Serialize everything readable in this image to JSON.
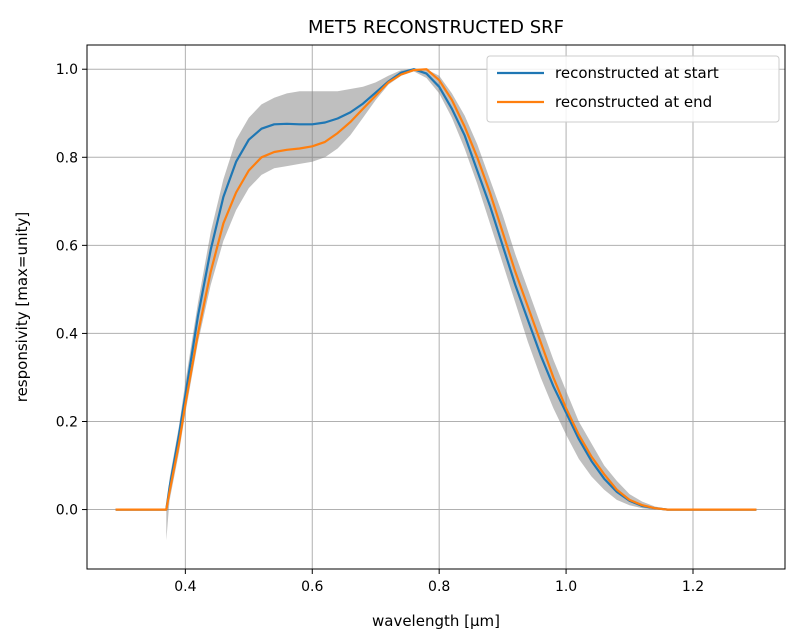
{
  "chart_data": {
    "type": "line",
    "title": "MET5 RECONSTRUCTED SRF",
    "xlabel": "wavelength [μm]",
    "ylabel": "responsivity [max=unity]",
    "xlim": [
      0.245,
      1.345
    ],
    "ylim": [
      -0.135,
      1.055
    ],
    "xticks": [
      0.4,
      0.6,
      0.8,
      1.0,
      1.2
    ],
    "xtick_labels": [
      "0.4",
      "0.6",
      "0.8",
      "1.0",
      "1.2"
    ],
    "yticks": [
      0.0,
      0.2,
      0.4,
      0.6,
      0.8,
      1.0
    ],
    "ytick_labels": [
      "0.0",
      "0.2",
      "0.4",
      "0.6",
      "0.8",
      "1.0"
    ],
    "grid": true,
    "legend_position": "top-right",
    "series": [
      {
        "name": "reconstructed at start",
        "color": "#1f77b4",
        "x": [
          0.29,
          0.34,
          0.37,
          0.375,
          0.39,
          0.4,
          0.42,
          0.44,
          0.46,
          0.48,
          0.5,
          0.52,
          0.54,
          0.56,
          0.58,
          0.6,
          0.62,
          0.64,
          0.66,
          0.68,
          0.7,
          0.72,
          0.74,
          0.76,
          0.78,
          0.8,
          0.82,
          0.84,
          0.86,
          0.88,
          0.9,
          0.92,
          0.94,
          0.96,
          0.98,
          1.0,
          1.02,
          1.04,
          1.06,
          1.08,
          1.1,
          1.12,
          1.14,
          1.16,
          1.18,
          1.2,
          1.25,
          1.3
        ],
        "y": [
          0.0,
          0.0,
          0.0,
          0.05,
          0.17,
          0.26,
          0.44,
          0.59,
          0.71,
          0.79,
          0.84,
          0.865,
          0.875,
          0.876,
          0.875,
          0.875,
          0.879,
          0.888,
          0.902,
          0.922,
          0.947,
          0.972,
          0.992,
          1.0,
          0.99,
          0.96,
          0.91,
          0.85,
          0.77,
          0.69,
          0.6,
          0.51,
          0.43,
          0.35,
          0.28,
          0.22,
          0.16,
          0.11,
          0.07,
          0.04,
          0.02,
          0.008,
          0.003,
          0.0,
          0.0,
          0.0,
          0.0,
          0.0
        ]
      },
      {
        "name": "reconstructed at end",
        "color": "#ff7f0e",
        "x": [
          0.29,
          0.34,
          0.37,
          0.375,
          0.39,
          0.4,
          0.42,
          0.44,
          0.46,
          0.48,
          0.5,
          0.52,
          0.54,
          0.56,
          0.58,
          0.6,
          0.62,
          0.64,
          0.66,
          0.68,
          0.7,
          0.72,
          0.74,
          0.76,
          0.78,
          0.8,
          0.82,
          0.84,
          0.86,
          0.88,
          0.9,
          0.92,
          0.94,
          0.96,
          0.98,
          1.0,
          1.02,
          1.04,
          1.06,
          1.08,
          1.1,
          1.12,
          1.14,
          1.16,
          1.18,
          1.2,
          1.25,
          1.3
        ],
        "y": [
          0.0,
          0.0,
          0.0,
          0.04,
          0.15,
          0.24,
          0.4,
          0.54,
          0.65,
          0.72,
          0.77,
          0.8,
          0.812,
          0.817,
          0.82,
          0.825,
          0.835,
          0.855,
          0.88,
          0.91,
          0.94,
          0.97,
          0.988,
          0.998,
          1.0,
          0.975,
          0.93,
          0.87,
          0.8,
          0.72,
          0.63,
          0.54,
          0.46,
          0.38,
          0.3,
          0.23,
          0.17,
          0.12,
          0.08,
          0.045,
          0.022,
          0.01,
          0.003,
          0.0,
          0.0,
          0.0,
          0.0,
          0.0
        ]
      }
    ],
    "uncertainty_band": {
      "color": "#808080",
      "x": [
        0.37,
        0.375,
        0.39,
        0.4,
        0.42,
        0.44,
        0.46,
        0.48,
        0.5,
        0.52,
        0.54,
        0.56,
        0.58,
        0.6,
        0.62,
        0.64,
        0.66,
        0.68,
        0.7,
        0.72,
        0.74,
        0.76,
        0.78,
        0.8,
        0.82,
        0.84,
        0.86,
        0.88,
        0.9,
        0.92,
        0.94,
        0.96,
        0.98,
        1.0,
        1.02,
        1.04,
        1.06,
        1.08,
        1.1,
        1.12,
        1.14,
        1.16,
        1.18
      ],
      "lower": [
        -0.07,
        0.02,
        0.13,
        0.22,
        0.38,
        0.51,
        0.61,
        0.68,
        0.73,
        0.76,
        0.775,
        0.78,
        0.785,
        0.79,
        0.8,
        0.82,
        0.85,
        0.89,
        0.93,
        0.965,
        0.985,
        0.995,
        0.98,
        0.945,
        0.89,
        0.82,
        0.74,
        0.65,
        0.56,
        0.47,
        0.38,
        0.3,
        0.23,
        0.17,
        0.115,
        0.075,
        0.045,
        0.022,
        0.01,
        0.003,
        0.0,
        0.0,
        0.0
      ],
      "upper": [
        0.0,
        0.07,
        0.19,
        0.29,
        0.47,
        0.63,
        0.75,
        0.84,
        0.89,
        0.92,
        0.935,
        0.945,
        0.95,
        0.95,
        0.95,
        0.95,
        0.955,
        0.96,
        0.97,
        0.985,
        0.998,
        1.0,
        1.0,
        0.985,
        0.945,
        0.895,
        0.83,
        0.75,
        0.67,
        0.58,
        0.5,
        0.42,
        0.34,
        0.27,
        0.2,
        0.15,
        0.1,
        0.065,
        0.035,
        0.018,
        0.007,
        0.002,
        0.0
      ]
    }
  }
}
